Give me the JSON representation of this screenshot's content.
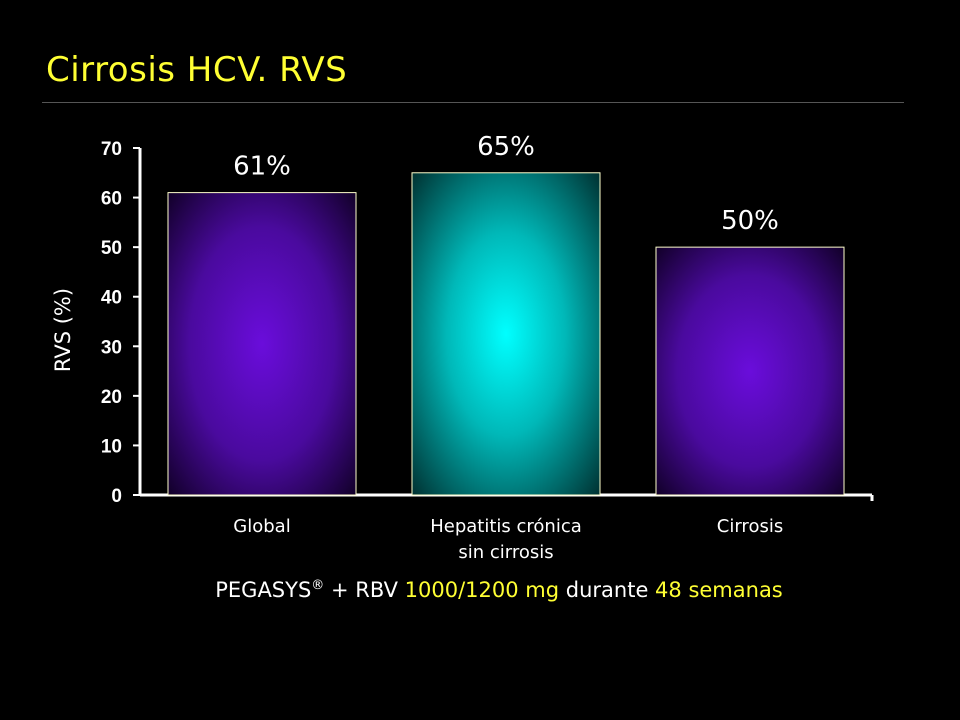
{
  "header": {
    "title": "Cirrosis HCV. RVS"
  },
  "colors": {
    "background": "#000000",
    "title": "#FFFF33",
    "text": "#FFFFFF",
    "highlight": "#FFFF33",
    "bar_purple_center": "#6A0DDB",
    "bar_teal_center": "#00FFFF",
    "bar_border": "#FFFFCC"
  },
  "chart_data": {
    "type": "bar",
    "title": "",
    "ylabel": "RVS (%)",
    "xlabel": "",
    "ylim": [
      0,
      70
    ],
    "yticks": [
      0,
      10,
      20,
      30,
      40,
      50,
      60,
      70
    ],
    "grid": false,
    "categories": [
      [
        "Global"
      ],
      [
        "Hepatitis crónica",
        "sin cirrosis"
      ],
      [
        "Cirrosis"
      ]
    ],
    "values": [
      61,
      65,
      50
    ],
    "data_labels": [
      "61%",
      "65%",
      "50%"
    ],
    "bar_colors": [
      "purple",
      "teal",
      "purple"
    ]
  },
  "footer": {
    "drug": "PEGASYS",
    "reg": "®",
    "plus": " + RBV ",
    "dose": "1000/1200 mg",
    "middle": " durante ",
    "duration": "48 semanas"
  }
}
